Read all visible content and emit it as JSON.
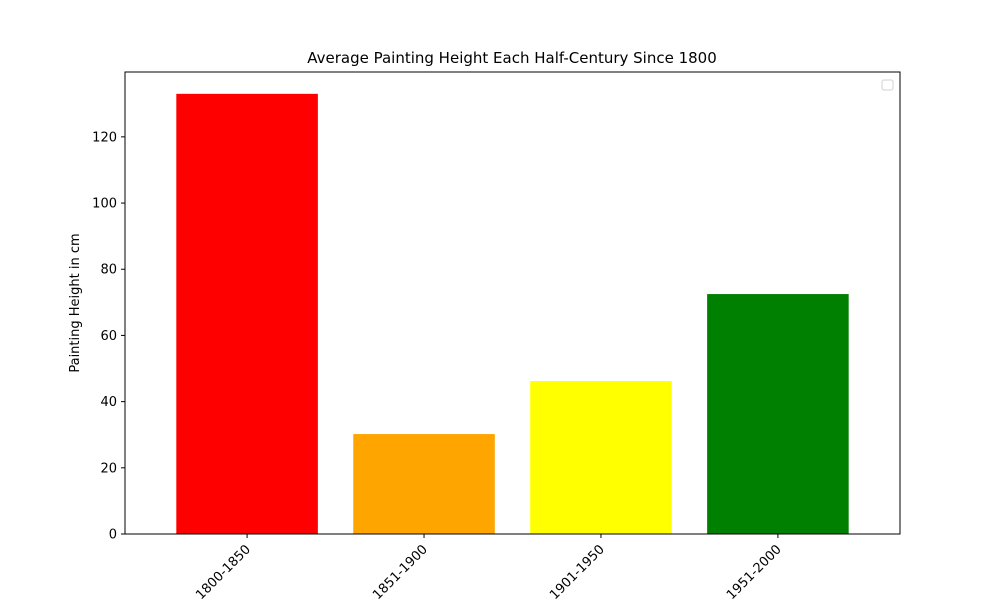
{
  "chart_data": {
    "type": "bar",
    "title": "Average Painting Height Each Half-Century Since 1800",
    "xlabel": "",
    "ylabel": "Painting Height in cm",
    "categories": [
      "1800-1850",
      "1851-1900",
      "1901-1950",
      "1951-2000"
    ],
    "values": [
      133,
      30.2,
      46.2,
      72.5
    ],
    "colors": [
      "#ff0000",
      "#ffa500",
      "#ffff00",
      "#008000"
    ],
    "ylim": [
      0,
      139.6
    ],
    "yticks": [
      0,
      20,
      40,
      60,
      80,
      100,
      120
    ],
    "xtick_rotation": 45,
    "legend": "top-right",
    "grid": false
  }
}
